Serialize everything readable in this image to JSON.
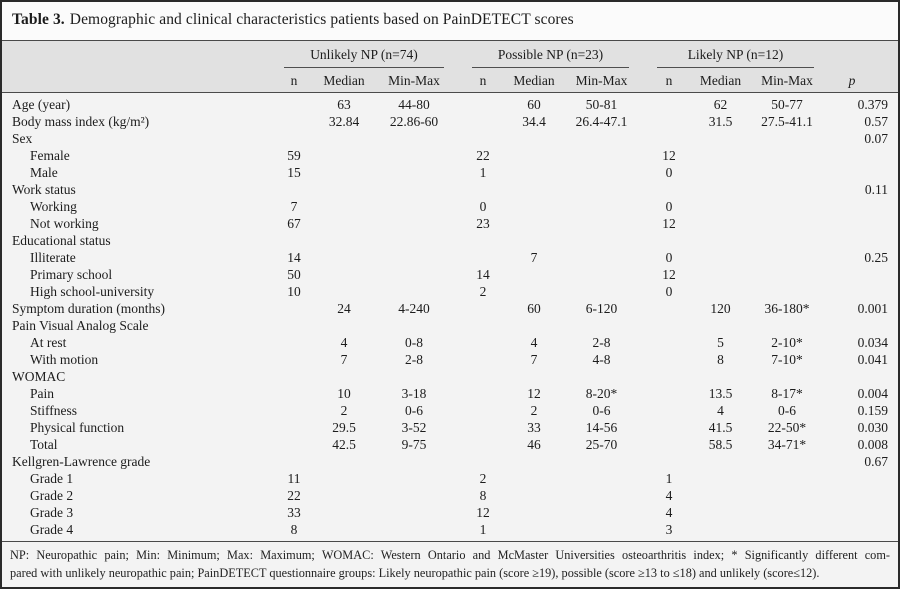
{
  "title": {
    "label": "Table 3.",
    "text": "Demographic and clinical characteristics patients based on PainDETECT scores"
  },
  "table": {
    "groups": [
      {
        "label": "Unlikely NP (n=74)"
      },
      {
        "label": "Possible NP (n=23)"
      },
      {
        "label": "Likely NP (n=12)"
      }
    ],
    "subheaders": [
      "n",
      "Median",
      "Min-Max"
    ],
    "p_label": "p",
    "rows": [
      {
        "label": "Age (year)",
        "indent": 0,
        "u_med": "63",
        "u_mm": "44-80",
        "p_med": "60",
        "p_mm": "50-81",
        "l_med": "62",
        "l_mm": "50-77",
        "p": "0.379"
      },
      {
        "label": "Body mass index (kg/m²)",
        "indent": 0,
        "u_med": "32.84",
        "u_mm": "22.86-60",
        "p_med": "34.4",
        "p_mm": "26.4-47.1",
        "l_med": "31.5",
        "l_mm": "27.5-41.1",
        "p": "0.57"
      },
      {
        "label": "Sex",
        "indent": 0,
        "p": "0.07"
      },
      {
        "label": "Female",
        "indent": 1,
        "u_n": "59",
        "p_n": "22",
        "l_n": "12"
      },
      {
        "label": "Male",
        "indent": 1,
        "u_n": "15",
        "p_n": "1",
        "l_n": "0"
      },
      {
        "label": "Work status",
        "indent": 0,
        "p": "0.11"
      },
      {
        "label": "Working",
        "indent": 1,
        "u_n": "7",
        "p_n": "0",
        "l_n": "0"
      },
      {
        "label": "Not working",
        "indent": 1,
        "u_n": "67",
        "p_n": "23",
        "l_n": "12"
      },
      {
        "label": "Educational status",
        "indent": 0
      },
      {
        "label": "Illiterate",
        "indent": 1,
        "u_n": "14",
        "p_med": "7",
        "l_n": "0",
        "p": "0.25"
      },
      {
        "label": "Primary school",
        "indent": 1,
        "u_n": "50",
        "p_n": "14",
        "l_n": "12"
      },
      {
        "label": "High school-university",
        "indent": 1,
        "u_n": "10",
        "p_n": "2",
        "l_n": "0"
      },
      {
        "label": "Symptom duration (months)",
        "indent": 0,
        "u_med": "24",
        "u_mm": "4-240",
        "p_med": "60",
        "p_mm": "6-120",
        "l_med": "120",
        "l_mm": "36-180*",
        "p": "0.001"
      },
      {
        "label": "Pain Visual Analog Scale",
        "indent": 0
      },
      {
        "label": "At rest",
        "indent": 1,
        "u_med": "4",
        "u_mm": "0-8",
        "p_med": "4",
        "p_mm": "2-8",
        "l_med": "5",
        "l_mm": "2-10*",
        "p": "0.034"
      },
      {
        "label": "With motion",
        "indent": 1,
        "u_med": "7",
        "u_mm": "2-8",
        "p_med": "7",
        "p_mm": "4-8",
        "l_med": "8",
        "l_mm": "7-10*",
        "p": "0.041"
      },
      {
        "label": "WOMAC",
        "indent": 0
      },
      {
        "label": "Pain",
        "indent": 1,
        "u_med": "10",
        "u_mm": "3-18",
        "p_med": "12",
        "p_mm": "8-20*",
        "l_med": "13.5",
        "l_mm": "8-17*",
        "p": "0.004"
      },
      {
        "label": "Stiffness",
        "indent": 1,
        "u_med": "2",
        "u_mm": "0-6",
        "p_med": "2",
        "p_mm": "0-6",
        "l_med": "4",
        "l_mm": "0-6",
        "p": "0.159"
      },
      {
        "label": "Physical function",
        "indent": 1,
        "u_med": "29.5",
        "u_mm": "3-52",
        "p_med": "33",
        "p_mm": "14-56",
        "l_med": "41.5",
        "l_mm": "22-50*",
        "p": "0.030"
      },
      {
        "label": "Total",
        "indent": 1,
        "u_med": "42.5",
        "u_mm": "9-75",
        "p_med": "46",
        "p_mm": "25-70",
        "l_med": "58.5",
        "l_mm": "34-71*",
        "p": "0.008"
      },
      {
        "label": "Kellgren-Lawrence grade",
        "indent": 0,
        "p": "0.67"
      },
      {
        "label": "Grade 1",
        "indent": 1,
        "u_n": "11",
        "p_n": "2",
        "l_n": "1"
      },
      {
        "label": "Grade 2",
        "indent": 1,
        "u_n": "22",
        "p_n": "8",
        "l_n": "4"
      },
      {
        "label": "Grade 3",
        "indent": 1,
        "u_n": "33",
        "p_n": "12",
        "l_n": "4"
      },
      {
        "label": "Grade 4",
        "indent": 1,
        "u_n": "8",
        "p_n": "1",
        "l_n": "3"
      }
    ]
  },
  "footnote": {
    "lines": [
      "NP: Neuropathic pain; Min: Minimum; Max: Maximum; WOMAC: Western Ontario and McMaster Universities osteoarthritis index; * Significantly different com-",
      "pared with unlikely neuropathic pain; PainDETECT questionnaire groups: Likely neuropathic pain (score ≥19), possible (score ≥13 to ≤18) and unlikely (score≤12)."
    ]
  },
  "colors": {
    "frame_border": "#2a2a2a",
    "title_bg": "#fbfbfb",
    "header_band_bg": "#e1e1e1",
    "body_bg": "#f3f3f3",
    "rule": "#4a4a4a",
    "text": "#1c1c1c"
  }
}
